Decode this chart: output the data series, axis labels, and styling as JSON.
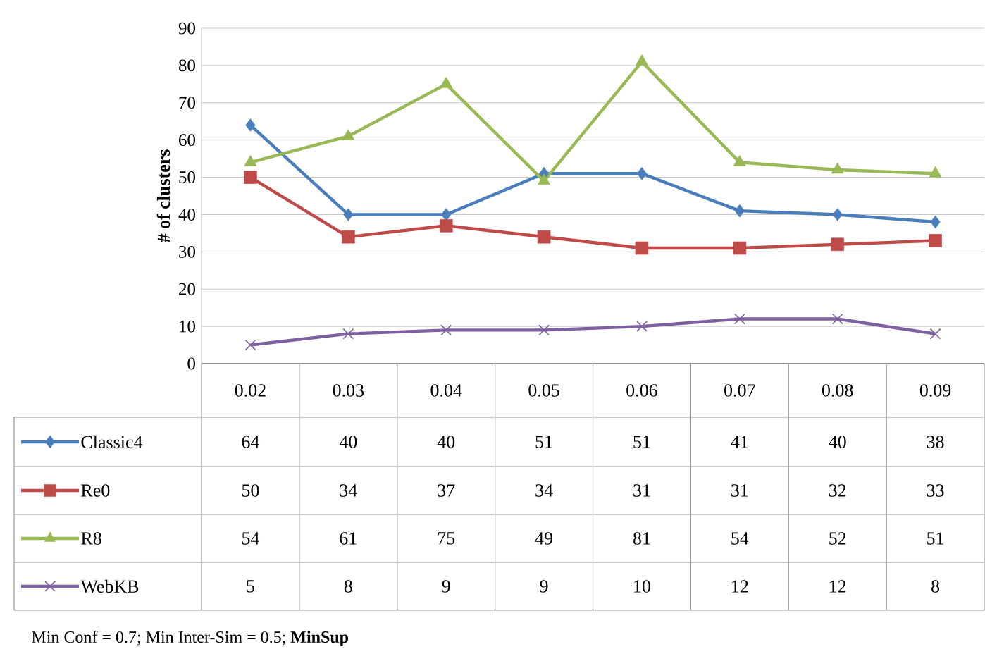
{
  "chart_data": {
    "type": "line",
    "ylabel": "# of clusters",
    "legend": "bottom left",
    "annotations": [
      "Min Conf = 0.7; Min Inter-Sim = 0.5;    **MinSup**"
    ],
    "categories": [
      "0.02",
      "0.03",
      "0.04",
      "0.05",
      "0.06",
      "0.07",
      "0.08",
      "0.09"
    ],
    "series": [
      {
        "name": "Classic4",
        "color": "#4a7ebb",
        "marker": "diamond",
        "values": [
          64,
          40,
          40,
          51,
          51,
          41,
          40,
          38
        ]
      },
      {
        "name": "Re0",
        "color": "#be4b48",
        "marker": "square",
        "values": [
          50,
          34,
          37,
          34,
          31,
          31,
          32,
          33
        ]
      },
      {
        "name": "R8",
        "color": "#98b954",
        "marker": "triangle",
        "values": [
          54,
          61,
          75,
          49,
          81,
          54,
          52,
          51
        ]
      },
      {
        "name": "WebKB",
        "color": "#7d60a0",
        "marker": "cross",
        "values": [
          5,
          8,
          9,
          9,
          10,
          12,
          12,
          8
        ]
      }
    ],
    "ylim": [
      0,
      90
    ],
    "yticks": [
      0,
      10,
      20,
      30,
      40,
      50,
      60,
      70,
      80,
      90
    ],
    "grid": "y",
    "data_labels": true
  }
}
